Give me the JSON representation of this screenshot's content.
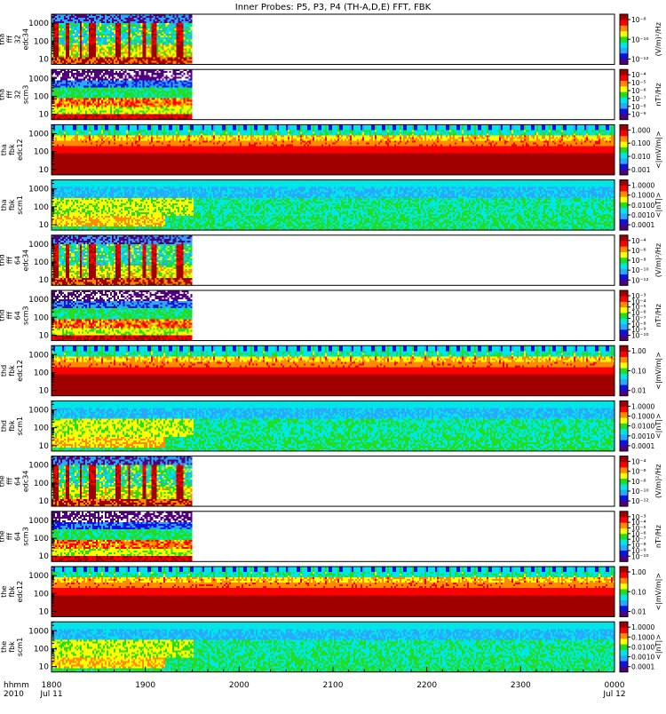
{
  "title": "Inner Probes: P5, P3, P4 (TH-A,D,E) FFT, FBK",
  "x_axis": {
    "tick_labels": [
      "1800",
      "1900",
      "2000",
      "2100",
      "2200",
      "2300",
      "0000"
    ],
    "date_labels": [
      "Jul 11",
      "Jul 12"
    ],
    "row1_name": "hhmm",
    "row2_name": "2010"
  },
  "palette": {
    "dark_red": "#a00000",
    "red": "#ff0000",
    "orange": "#ff8c00",
    "yellow": "#ffff00",
    "green": "#22dd22",
    "cyan": "#00e6e6",
    "sky": "#2aa8ff",
    "blue": "#1010e0",
    "purple": "#50007a",
    "black": "#000000"
  },
  "chart_data": [
    {
      "type": "heatmap",
      "probe": "tha",
      "ylabel": [
        "tha",
        "fff",
        "32",
        "edc34"
      ],
      "yticks": [
        "10",
        "100",
        "1000"
      ],
      "colorbar_ticks": [
        "10⁻⁸",
        "10⁻¹⁰",
        "10⁻¹²"
      ],
      "colorbar_label": "(V/m)²/Hz",
      "data_xrange": [
        "1800",
        "1930"
      ],
      "spec": "fff-e"
    },
    {
      "type": "heatmap",
      "probe": "tha",
      "ylabel": [
        "tha",
        "fff",
        "32",
        "scm3"
      ],
      "yticks": [
        "10",
        "100",
        "1000"
      ],
      "colorbar_ticks": [
        "10⁻⁴",
        "10⁻⁵",
        "10⁻⁶",
        "10⁻⁷",
        "10⁻⁸",
        "10⁻⁹"
      ],
      "colorbar_label": "nT²/Hz",
      "data_xrange": [
        "1800",
        "1930"
      ],
      "spec": "fff-b"
    },
    {
      "type": "heatmap",
      "probe": "tha",
      "ylabel": [
        "tha",
        "fbk",
        "edc12"
      ],
      "yticks": [
        "10",
        "100",
        "1000"
      ],
      "colorbar_ticks": [
        "1.000",
        "0.100",
        "0.010",
        "0.001"
      ],
      "colorbar_label": "<|mV/m|>",
      "data_xrange": [
        "1800",
        "0000"
      ],
      "spec": "fbk-e"
    },
    {
      "type": "heatmap",
      "probe": "tha",
      "ylabel": [
        "tha",
        "fbk",
        "scm1"
      ],
      "yticks": [
        "10",
        "100",
        "1000"
      ],
      "colorbar_ticks": [
        "1.0000",
        "0.1000",
        "0.0100",
        "0.0010",
        "0.0001"
      ],
      "colorbar_label": "<|nT|>",
      "data_xrange": [
        "1800",
        "0000"
      ],
      "spec": "fbk-b"
    },
    {
      "type": "heatmap",
      "probe": "thd",
      "ylabel": [
        "thd",
        "fff",
        "64",
        "edc34"
      ],
      "yticks": [
        "10",
        "100",
        "1000"
      ],
      "colorbar_ticks": [
        "10⁻⁴",
        "10⁻⁶",
        "10⁻⁸",
        "10⁻¹⁰",
        "10⁻¹²"
      ],
      "colorbar_label": "(V/m)²/Hz",
      "data_xrange": [
        "1800",
        "1930"
      ],
      "spec": "fff-e"
    },
    {
      "type": "heatmap",
      "probe": "thd",
      "ylabel": [
        "thd",
        "fff",
        "64",
        "scm3"
      ],
      "yticks": [
        "10",
        "100",
        "1000"
      ],
      "colorbar_ticks": [
        "10⁻³",
        "10⁻⁴",
        "10⁻⁵",
        "10⁻⁶",
        "10⁻⁷",
        "10⁻⁸",
        "10⁻⁹",
        "10⁻¹⁰"
      ],
      "colorbar_label": "nT²/Hz",
      "data_xrange": [
        "1800",
        "1930"
      ],
      "spec": "fff-b"
    },
    {
      "type": "heatmap",
      "probe": "thd",
      "ylabel": [
        "thd",
        "fbk",
        "edc12"
      ],
      "yticks": [
        "10",
        "100",
        "1000"
      ],
      "colorbar_ticks": [
        "1.00",
        "0.10",
        "0.01"
      ],
      "colorbar_label": "<|mV/m|>",
      "data_xrange": [
        "1800",
        "0000"
      ],
      "spec": "fbk-e"
    },
    {
      "type": "heatmap",
      "probe": "thd",
      "ylabel": [
        "thd",
        "fbk",
        "scm1"
      ],
      "yticks": [
        "10",
        "100",
        "1000"
      ],
      "colorbar_ticks": [
        "1.0000",
        "0.1000",
        "0.0100",
        "0.0010",
        "0.0001"
      ],
      "colorbar_label": "<|nT|>",
      "data_xrange": [
        "1800",
        "0000"
      ],
      "spec": "fbk-b"
    },
    {
      "type": "heatmap",
      "probe": "the",
      "ylabel": [
        "the",
        "fff",
        "64",
        "edc34"
      ],
      "yticks": [
        "10",
        "100",
        "1000"
      ],
      "colorbar_ticks": [
        "10⁻⁴",
        "10⁻⁶",
        "10⁻⁸",
        "10⁻¹⁰",
        "10⁻¹²"
      ],
      "colorbar_label": "(V/m)²/Hz",
      "data_xrange": [
        "1800",
        "1930"
      ],
      "spec": "fff-e"
    },
    {
      "type": "heatmap",
      "probe": "the",
      "ylabel": [
        "the",
        "fff",
        "64",
        "scm3"
      ],
      "yticks": [
        "10",
        "100",
        "1000"
      ],
      "colorbar_ticks": [
        "10⁻³",
        "10⁻⁴",
        "10⁻⁵",
        "10⁻⁶",
        "10⁻⁷",
        "10⁻⁸",
        "10⁻⁹",
        "10⁻¹⁰"
      ],
      "colorbar_label": "nT²/Hz",
      "data_xrange": [
        "1800",
        "1930"
      ],
      "spec": "fff-b"
    },
    {
      "type": "heatmap",
      "probe": "the",
      "ylabel": [
        "the",
        "fbk",
        "edc12"
      ],
      "yticks": [
        "10",
        "100",
        "1000"
      ],
      "colorbar_ticks": [
        "1.00",
        "0.10",
        "0.01"
      ],
      "colorbar_label": "<|mV/m|>",
      "data_xrange": [
        "1800",
        "0000"
      ],
      "spec": "fbk-e"
    },
    {
      "type": "heatmap",
      "probe": "the",
      "ylabel": [
        "the",
        "fbk",
        "scm1"
      ],
      "yticks": [
        "10",
        "100",
        "1000"
      ],
      "colorbar_ticks": [
        "1.0000",
        "0.1000",
        "0.0100",
        "0.0010",
        "0.0001"
      ],
      "colorbar_label": "<|nT|>",
      "data_xrange": [
        "1800",
        "0000"
      ],
      "spec": "fbk-b"
    }
  ]
}
